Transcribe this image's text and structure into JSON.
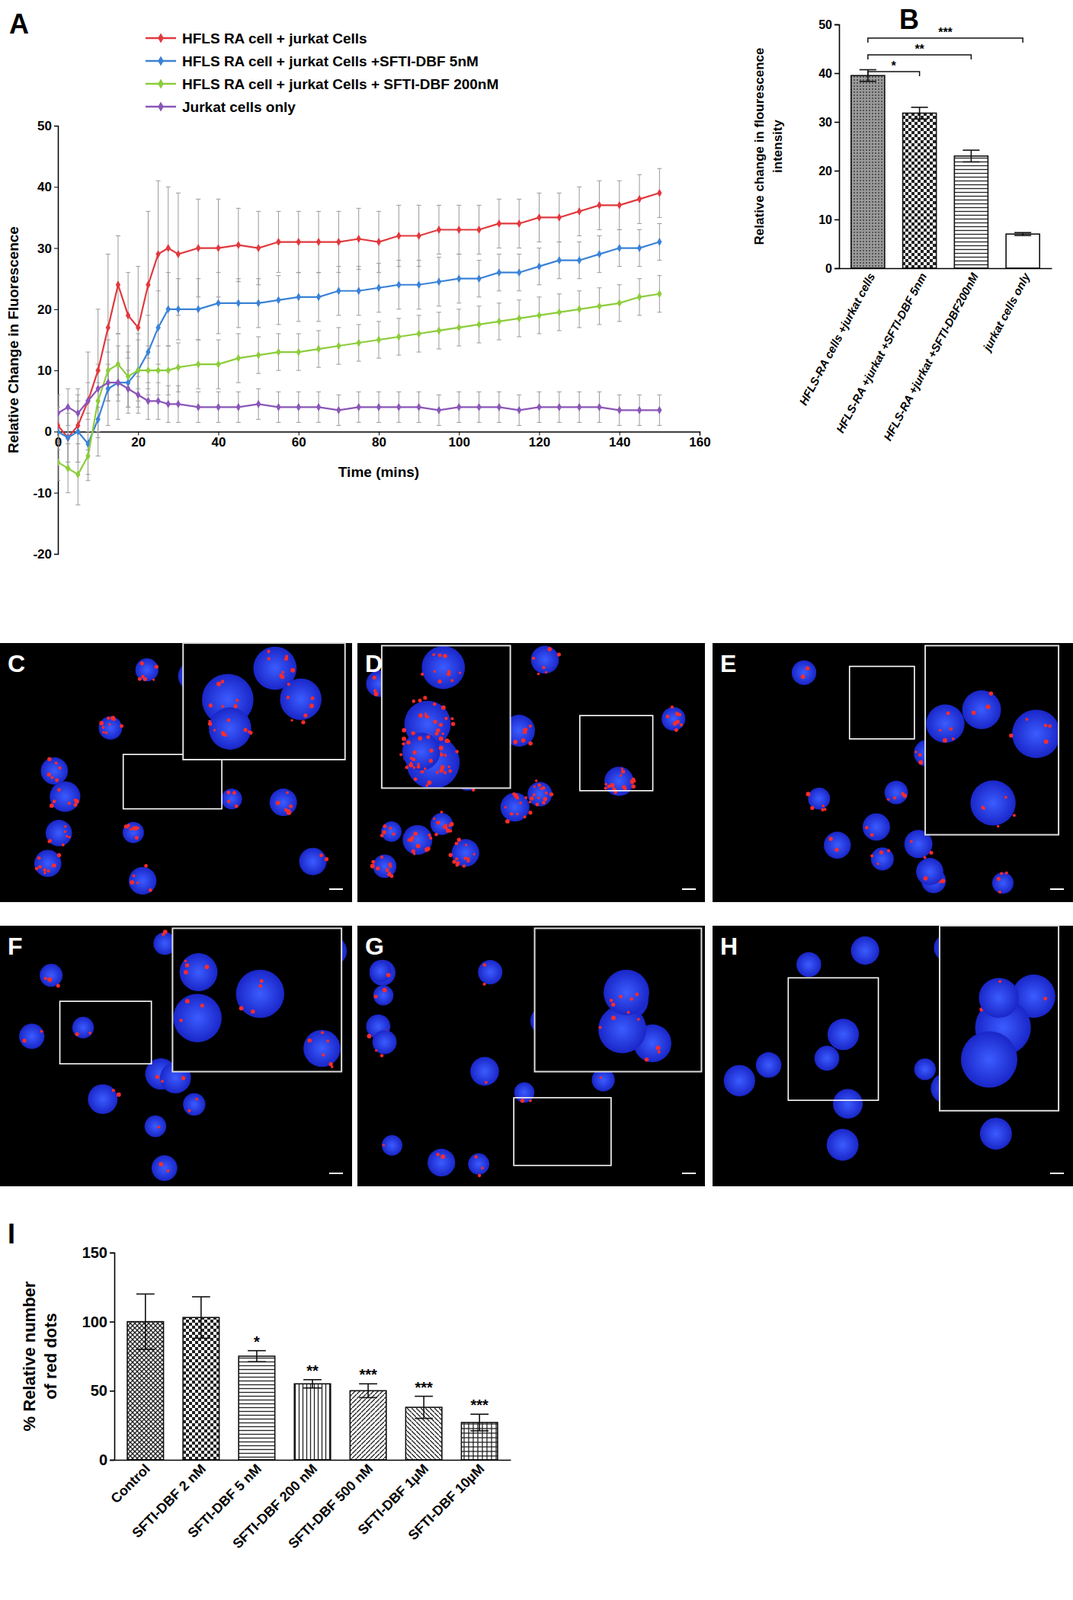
{
  "chart_data": [
    {
      "label": "A",
      "type": "line",
      "x_label": "Time (mins)",
      "y_label": "Relative Change in  Fluorescence",
      "x": [
        0,
        2.5,
        5,
        7.5,
        10,
        12.5,
        15,
        17.5,
        20,
        22.5,
        25,
        27.5,
        30,
        35,
        40,
        45,
        50,
        55,
        60,
        65,
        70,
        75,
        80,
        85,
        90,
        95,
        100,
        105,
        110,
        115,
        120,
        125,
        130,
        135,
        140,
        145,
        150
      ],
      "xlim": [
        0,
        160
      ],
      "xticks": [
        0,
        20,
        40,
        60,
        80,
        100,
        120,
        140,
        160
      ],
      "ylim": [
        -20,
        50
      ],
      "yticks": [
        -20,
        -10,
        0,
        10,
        20,
        30,
        40,
        50
      ],
      "marker": "diamond",
      "legend": "top-left",
      "series": [
        {
          "name": "HFLS RA cell + jurkat Cells",
          "color": "#e0393e",
          "values": [
            1,
            -1,
            1,
            5,
            10,
            17,
            24,
            19,
            17,
            24,
            29,
            30,
            29,
            30,
            30,
            30.5,
            30,
            31,
            31,
            31,
            31,
            31.5,
            31,
            32,
            32,
            33,
            33,
            33,
            34,
            34,
            35,
            35,
            36,
            37,
            37,
            38,
            39
          ],
          "errors": [
            3,
            5,
            6,
            8,
            10,
            12,
            8,
            7,
            10,
            12,
            12,
            10,
            10,
            8,
            8,
            6,
            6,
            5,
            5,
            5,
            5,
            5,
            5,
            5,
            5,
            4,
            4,
            4,
            4,
            4,
            4,
            4,
            4,
            4,
            4,
            4,
            4
          ]
        },
        {
          "name": "HFLS RA cell + jurkat Cells +SFTI-DBF 5nM",
          "color": "#3b82d6",
          "values": [
            0,
            -1,
            0,
            -2,
            2,
            7,
            8,
            8,
            10,
            13,
            17,
            20,
            20,
            20,
            21,
            21,
            21,
            21.5,
            22,
            22,
            23,
            23,
            23.5,
            24,
            24,
            24.5,
            25,
            25,
            26,
            26,
            27,
            28,
            28,
            29,
            30,
            30,
            31
          ],
          "errors": [
            3,
            4,
            5,
            5,
            6,
            6,
            6,
            5,
            6,
            6,
            6,
            6,
            5,
            5,
            5,
            4,
            4,
            4,
            4,
            4,
            4,
            4,
            4,
            4,
            4,
            4,
            4,
            3,
            3,
            3,
            3,
            3,
            3,
            3,
            3,
            3,
            3
          ]
        },
        {
          "name": "HFLS RA cell + jurkat Cells + SFTI-DBF 200nM",
          "color": "#8ccc3c",
          "values": [
            -5,
            -6,
            -7,
            -4,
            5,
            10,
            11,
            9,
            10,
            10,
            10,
            10,
            10.5,
            11,
            11,
            12,
            12.5,
            13,
            13,
            13.5,
            14,
            14.5,
            15,
            15.5,
            16,
            16.5,
            17,
            17.5,
            18,
            18.5,
            19,
            19.5,
            20,
            20.5,
            21,
            22,
            22.5
          ],
          "errors": [
            3,
            4,
            5,
            4,
            6,
            5,
            5,
            5,
            5,
            4,
            4,
            4,
            4,
            4,
            4,
            4,
            3,
            3,
            3,
            3,
            3,
            3,
            3,
            3,
            3,
            3,
            3,
            3,
            3,
            3,
            3,
            3,
            3,
            3,
            3,
            3,
            3
          ]
        },
        {
          "name": "Jurkat cells only",
          "color": "#8a56b8",
          "values": [
            3,
            4,
            3,
            5,
            7,
            8,
            8,
            7,
            6,
            5,
            5,
            4.5,
            4.5,
            4,
            4,
            4,
            4.5,
            4,
            4,
            4,
            3.5,
            4,
            4,
            4,
            4,
            3.5,
            4,
            4,
            4,
            3.5,
            4,
            4,
            4,
            4,
            3.5,
            3.5,
            3.5
          ],
          "errors": [
            3,
            3,
            3,
            3,
            3,
            3,
            3,
            3,
            3,
            3,
            3,
            3,
            3,
            2.5,
            2.5,
            2.5,
            2.5,
            2.5,
            2.5,
            2.5,
            2.5,
            2.5,
            2.5,
            2.5,
            2.5,
            2.5,
            2.5,
            2.5,
            2.5,
            2.5,
            2.5,
            2.5,
            2.5,
            2.5,
            2.5,
            2.5,
            2.5
          ]
        }
      ]
    },
    {
      "label": "B",
      "type": "bar",
      "y_label": [
        "Relative change in flourescence",
        "intensity"
      ],
      "categories": [
        "HFLS-RA cells +jurkat cells",
        "HFLS-RA +jurkat +SFTI-DBF 5nm",
        "HFLS-RA +jurkat +SFTI-DBF200nM",
        "jurkat cells only"
      ],
      "values": [
        39.5,
        31.8,
        23,
        7
      ],
      "errors": [
        1.2,
        1.2,
        1.2,
        0.3
      ],
      "ylim": [
        0,
        50
      ],
      "yticks": [
        0,
        10,
        20,
        30,
        40,
        50
      ],
      "comparisons": [
        {
          "pair": [
            0,
            1
          ],
          "label": "*"
        },
        {
          "pair": [
            0,
            2
          ],
          "label": "**"
        },
        {
          "pair": [
            0,
            3
          ],
          "label": "***"
        }
      ]
    },
    {
      "label": "I",
      "type": "bar",
      "y_label": [
        "% Relative number",
        "of red dots"
      ],
      "categories": [
        "Control",
        "SFTI-DBF 2 nM",
        "SFTI-DBF 5 nM",
        "SFTI-DBF 200 nM",
        "SFTI-DBF 500 nM",
        "SFTI-DBF 1µM",
        "SFTI-DBF 10µM"
      ],
      "values": [
        100,
        103,
        75,
        55,
        50,
        38,
        27
      ],
      "errors": [
        20,
        15,
        4,
        3,
        5,
        8,
        6
      ],
      "significance": [
        null,
        null,
        "*",
        "**",
        "***",
        "***",
        "***"
      ],
      "ylim": [
        0,
        150
      ],
      "yticks": [
        0,
        50,
        100,
        150
      ]
    }
  ],
  "images": [
    {
      "label": "C"
    },
    {
      "label": "D"
    },
    {
      "label": "E"
    },
    {
      "label": "F"
    },
    {
      "label": "G"
    },
    {
      "label": "H"
    }
  ]
}
